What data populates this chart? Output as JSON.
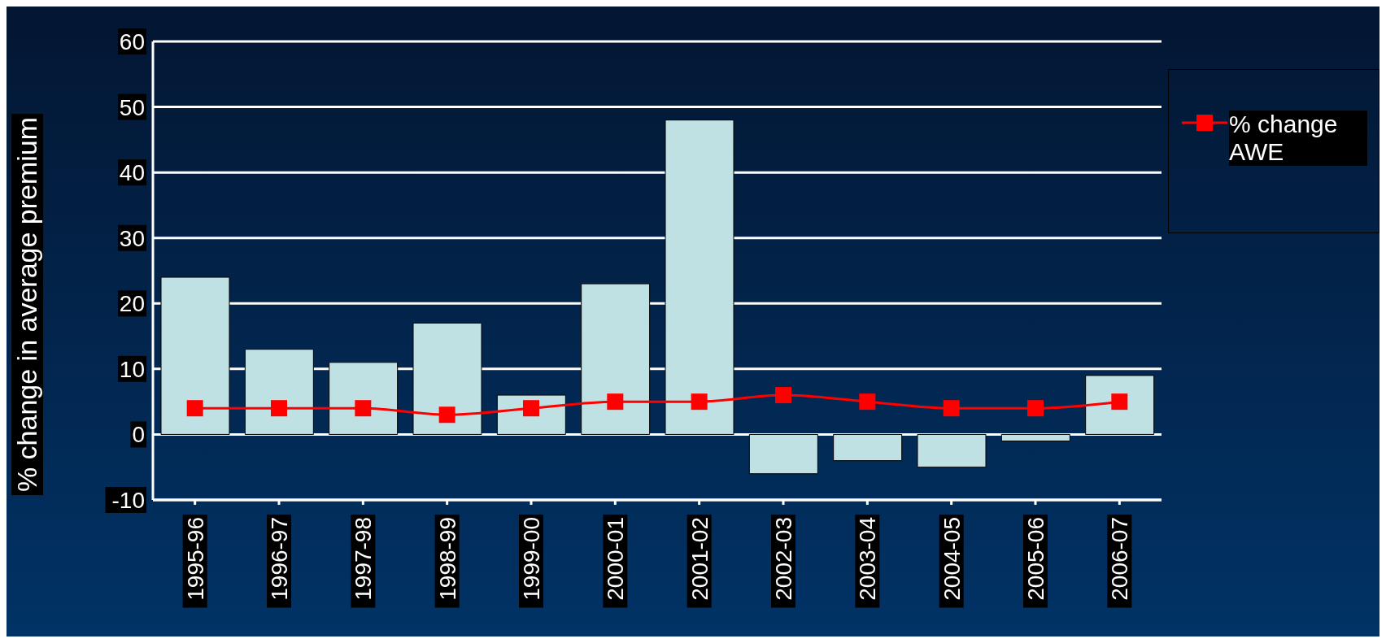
{
  "chart_data": {
    "type": "bar",
    "ylabel": "% change in average premium",
    "categories": [
      "1995-96",
      "1996-97",
      "1997-98",
      "1998-99",
      "1999-00",
      "2000-01",
      "2001-02",
      "2002-03",
      "2003-04",
      "2004-05",
      "2005-06",
      "2006-07"
    ],
    "series": [
      {
        "color": "#bfe1e4",
        "values": [
          24,
          13,
          11,
          17,
          6,
          23,
          48,
          -6,
          -4,
          -5,
          -1,
          9
        ]
      },
      {
        "type": "line",
        "name": "% change AWE",
        "color": "#ff0000",
        "values": [
          4,
          4,
          4,
          3,
          4,
          5,
          5,
          6,
          5,
          4,
          4,
          5
        ]
      }
    ],
    "ylim": [
      -10,
      60
    ],
    "yticks": [
      -10,
      0,
      10,
      20,
      30,
      40,
      50,
      60
    ],
    "grid": "y",
    "legend": "right",
    "marker": "square"
  }
}
